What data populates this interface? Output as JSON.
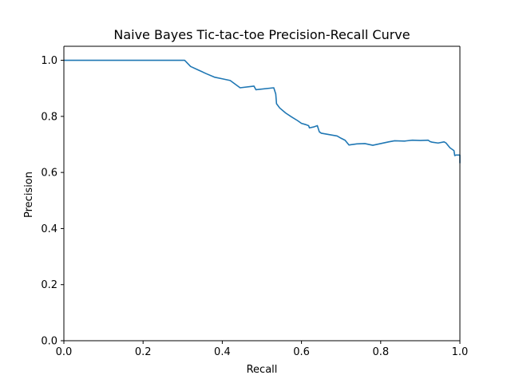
{
  "chart_data": {
    "type": "line",
    "title": "Naive Bayes Tic-tac-toe Precision-Recall Curve",
    "xlabel": "Recall",
    "ylabel": "Precision",
    "xlim": [
      0.0,
      1.0
    ],
    "ylim": [
      0.0,
      1.05
    ],
    "xticks": [
      "0.0",
      "0.2",
      "0.4",
      "0.6",
      "0.8",
      "1.0"
    ],
    "yticks": [
      "0.0",
      "0.2",
      "0.4",
      "0.6",
      "0.8",
      "1.0"
    ],
    "grid": false,
    "legend": "none",
    "color": "#1f77b4",
    "series": [
      {
        "x": [
          0.0,
          0.305,
          0.32,
          0.34,
          0.36,
          0.38,
          0.4,
          0.42,
          0.445,
          0.48,
          0.485,
          0.53,
          0.535,
          0.537,
          0.545,
          0.56,
          0.575,
          0.59,
          0.6,
          0.61,
          0.618,
          0.62,
          0.63,
          0.64,
          0.645,
          0.65,
          0.67,
          0.69,
          0.7,
          0.71,
          0.72,
          0.74,
          0.76,
          0.78,
          0.8,
          0.82,
          0.835,
          0.86,
          0.88,
          0.9,
          0.92,
          0.925,
          0.93,
          0.945,
          0.96,
          0.965,
          0.975,
          0.985,
          0.987,
          0.99,
          1.0,
          1.0
        ],
        "y": [
          1.0,
          1.0,
          0.978,
          0.965,
          0.952,
          0.94,
          0.934,
          0.928,
          0.902,
          0.908,
          0.895,
          0.902,
          0.88,
          0.845,
          0.83,
          0.812,
          0.798,
          0.785,
          0.775,
          0.771,
          0.767,
          0.759,
          0.762,
          0.767,
          0.745,
          0.74,
          0.735,
          0.73,
          0.722,
          0.715,
          0.698,
          0.702,
          0.703,
          0.697,
          0.703,
          0.709,
          0.713,
          0.712,
          0.715,
          0.714,
          0.715,
          0.71,
          0.708,
          0.705,
          0.709,
          0.705,
          0.688,
          0.678,
          0.66,
          0.662,
          0.662,
          0.633
        ]
      }
    ]
  }
}
